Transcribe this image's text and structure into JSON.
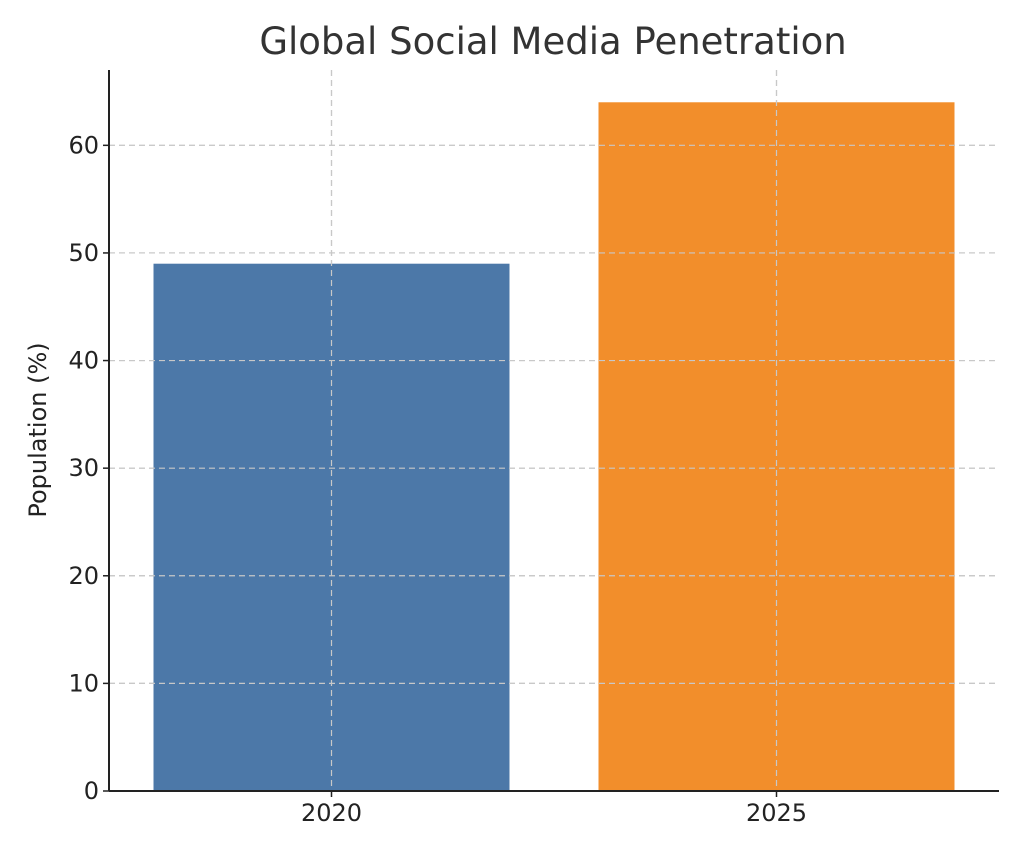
{
  "chart_data": {
    "type": "bar",
    "title": "Global Social Media Penetration",
    "xlabel": "",
    "ylabel": "Population (%)",
    "categories": [
      "2020",
      "2025"
    ],
    "values": [
      49,
      64
    ],
    "colors": [
      "#4c78a8",
      "#f28e2b"
    ],
    "ylim": [
      0,
      67
    ],
    "yticks": [
      0,
      10,
      20,
      30,
      40,
      50,
      60
    ],
    "grid": true
  }
}
